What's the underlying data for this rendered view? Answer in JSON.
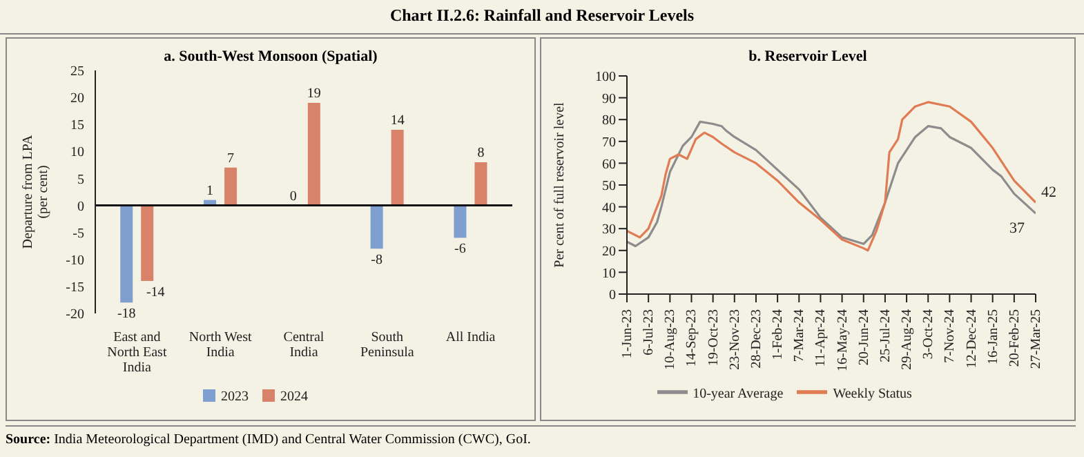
{
  "chart_data": [
    {
      "type": "bar",
      "title": "Chart II.2.6: Rainfall and Reservoir Levels",
      "subtitle": "a. South-West Monsoon (Spatial)",
      "ylabel": "Departure from LPA (per cent)",
      "categories": [
        "East and North East India",
        "North West India",
        "Central India",
        "South Peninsula",
        "All India"
      ],
      "series": [
        {
          "name": "2023",
          "color": "#7f9fd0",
          "values": [
            -18,
            1,
            0,
            -8,
            -6
          ]
        },
        {
          "name": "2024",
          "color": "#d9826a",
          "values": [
            -14,
            7,
            19,
            14,
            8
          ]
        }
      ],
      "ylim": [
        -20,
        25
      ],
      "yticks": [
        -20,
        -15,
        -10,
        -5,
        0,
        5,
        10,
        15,
        20,
        25
      ],
      "data_labels": true,
      "legend": "bottom",
      "ref_lines": [
        {
          "axis": "y",
          "value": 0,
          "color": "#111111"
        }
      ],
      "annotations": [
        "Source: India Meteorological Department (IMD) and Central Water Commission (CWC), GoI."
      ]
    },
    {
      "type": "line",
      "title": "b. Reservoir Level",
      "ylabel": "Per cent of full reservoir level",
      "ylim": [
        0,
        100
      ],
      "yticks": [
        0,
        10,
        20,
        30,
        40,
        50,
        60,
        70,
        80,
        90,
        100
      ],
      "xlim": [
        "2023-06-01",
        "2025-03-27"
      ],
      "xticks": [
        {
          "value": "2023-06-01",
          "label": "1-Jun-23"
        },
        {
          "value": "2023-07-06",
          "label": "6-Jul-23"
        },
        {
          "value": "2023-08-10",
          "label": "10-Aug-23"
        },
        {
          "value": "2023-09-14",
          "label": "14-Sep-23"
        },
        {
          "value": "2023-10-19",
          "label": "19-Oct-23"
        },
        {
          "value": "2023-11-23",
          "label": "23-Nov-23"
        },
        {
          "value": "2023-12-28",
          "label": "28-Dec-23"
        },
        {
          "value": "2024-02-01",
          "label": "1-Feb-24"
        },
        {
          "value": "2024-03-07",
          "label": "7-Mar-24"
        },
        {
          "value": "2024-04-11",
          "label": "11-Apr-24"
        },
        {
          "value": "2024-05-16",
          "label": "16-May-24"
        },
        {
          "value": "2024-06-20",
          "label": "20-Jun-24"
        },
        {
          "value": "2024-07-25",
          "label": "25-Jul-24"
        },
        {
          "value": "2024-08-29",
          "label": "29-Aug-24"
        },
        {
          "value": "2024-10-03",
          "label": "3-Oct-24"
        },
        {
          "value": "2024-11-07",
          "label": "7-Nov-24"
        },
        {
          "value": "2024-12-12",
          "label": "12-Dec-24"
        },
        {
          "value": "2025-01-16",
          "label": "16-Jan-25"
        },
        {
          "value": "2025-02-20",
          "label": "20-Feb-25"
        },
        {
          "value": "2025-03-27",
          "label": "27-Mar-25"
        }
      ],
      "series": [
        {
          "name": "10-year Average",
          "color": "#8c8c8c",
          "x": [
            "2023-06-01",
            "2023-06-15",
            "2023-07-06",
            "2023-07-20",
            "2023-07-27",
            "2023-08-10",
            "2023-08-31",
            "2023-09-14",
            "2023-09-28",
            "2023-10-19",
            "2023-11-02",
            "2023-11-09",
            "2023-11-23",
            "2023-12-28",
            "2024-02-01",
            "2024-03-07",
            "2024-04-11",
            "2024-05-16",
            "2024-06-20",
            "2024-07-04",
            "2024-07-25",
            "2024-08-15",
            "2024-08-29",
            "2024-09-12",
            "2024-10-03",
            "2024-10-24",
            "2024-11-07",
            "2024-12-12",
            "2025-01-16",
            "2025-01-30",
            "2025-02-20",
            "2025-03-27"
          ],
          "values": [
            24,
            22,
            26,
            33,
            40,
            56,
            68,
            72,
            79,
            78,
            77,
            75,
            72,
            66,
            57,
            48,
            35,
            26,
            23,
            27,
            42,
            60,
            66,
            72,
            77,
            76,
            72,
            67,
            57,
            54,
            46,
            37
          ]
        },
        {
          "name": "Weekly Status",
          "color": "#e07b54",
          "x": [
            "2023-06-01",
            "2023-06-22",
            "2023-07-06",
            "2023-07-27",
            "2023-08-03",
            "2023-08-10",
            "2023-08-24",
            "2023-09-07",
            "2023-09-21",
            "2023-10-05",
            "2023-10-19",
            "2023-11-02",
            "2023-11-23",
            "2023-12-28",
            "2024-02-01",
            "2024-03-07",
            "2024-04-11",
            "2024-05-16",
            "2024-06-20",
            "2024-06-27",
            "2024-07-11",
            "2024-07-25",
            "2024-08-01",
            "2024-08-15",
            "2024-08-22",
            "2024-09-12",
            "2024-10-03",
            "2024-11-07",
            "2024-12-12",
            "2025-01-16",
            "2025-02-20",
            "2025-03-27"
          ],
          "values": [
            29,
            26,
            30,
            45,
            55,
            62,
            64,
            62,
            71,
            74,
            72,
            69,
            65,
            60,
            52,
            42,
            34,
            25,
            21,
            20,
            29,
            42,
            65,
            71,
            80,
            86,
            88,
            86,
            79,
            67,
            52,
            42
          ]
        }
      ],
      "annotations": [
        {
          "text": "42",
          "x": "2025-03-27",
          "y": 42
        },
        {
          "text": "37",
          "x": "2025-03-27",
          "y": 37
        }
      ],
      "grid": false,
      "legend": "bottom",
      "marker": "none",
      "line_style": "solid"
    }
  ]
}
